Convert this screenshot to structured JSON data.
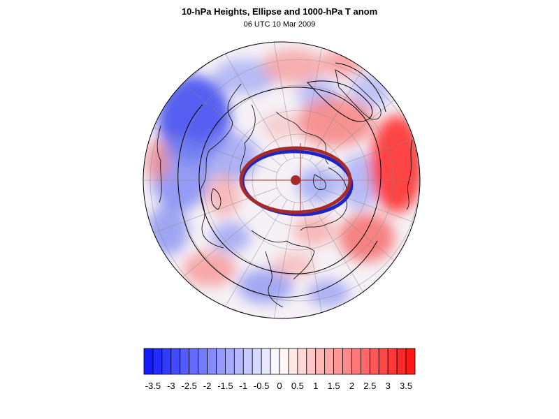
{
  "title": "10-hPa Heights, Ellipse and 1000-hPa T anom",
  "subtitle": "06 UTC 10 Mar 2009",
  "colorbar": {
    "tick_labels": [
      "-3.5",
      "-3",
      "-2.5",
      "-2",
      "-1.5",
      "-1",
      "-0.5",
      "0",
      "0.5",
      "1",
      "1.5",
      "2",
      "2.5",
      "3",
      "3.5"
    ],
    "min": -3.75,
    "max": 3.75,
    "step": 0.25,
    "low_color": "#0a14ff",
    "zero_color": "#ffffff",
    "high_color": "#ff1010"
  },
  "colors": {
    "ellipse_main": "#a52a2a",
    "ellipse_secondary": "#1a24c8",
    "contour": "#000000",
    "coastline": "#000000",
    "gridline": "#888888"
  },
  "projection": "north-polar-stereographic"
}
